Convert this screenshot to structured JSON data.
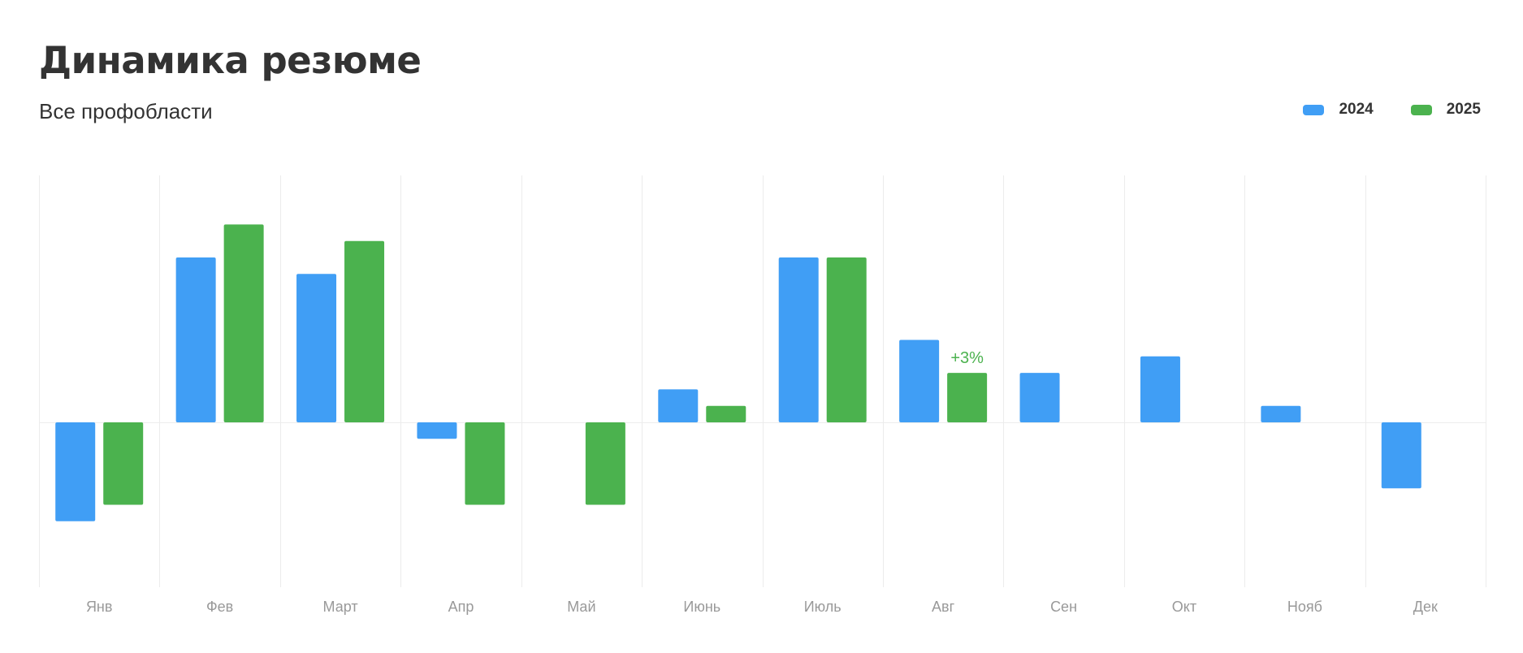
{
  "header": {
    "title": "Динамика резюме",
    "subtitle": "Все профобласти"
  },
  "legend": [
    {
      "name": "2024",
      "color": "#409ef5"
    },
    {
      "name": "2025",
      "color": "#4bb24e"
    }
  ],
  "chart_data": {
    "type": "bar",
    "title": "Динамика резюме",
    "subtitle": "Все профобласти",
    "categories": [
      "Янв",
      "Фев",
      "Март",
      "Апр",
      "Май",
      "Июнь",
      "Июль",
      "Авг",
      "Сен",
      "Окт",
      "Нояб",
      "Дек"
    ],
    "series": [
      {
        "name": "2024",
        "color": "#409ef5",
        "values": [
          -6,
          10,
          9,
          -1,
          null,
          2,
          10,
          5,
          3,
          4,
          1,
          -4
        ]
      },
      {
        "name": "2025",
        "color": "#4bb24e",
        "values": [
          -5,
          12,
          11,
          -5,
          -5,
          1,
          10,
          3,
          null,
          null,
          null,
          null
        ]
      }
    ],
    "ylim": [
      -10,
      15
    ],
    "grid": "vertical",
    "legend_position": "top-right",
    "annotations": [
      {
        "category": "Авг",
        "series": "2025",
        "text": "+3%",
        "color": "#4bb24e"
      }
    ]
  }
}
